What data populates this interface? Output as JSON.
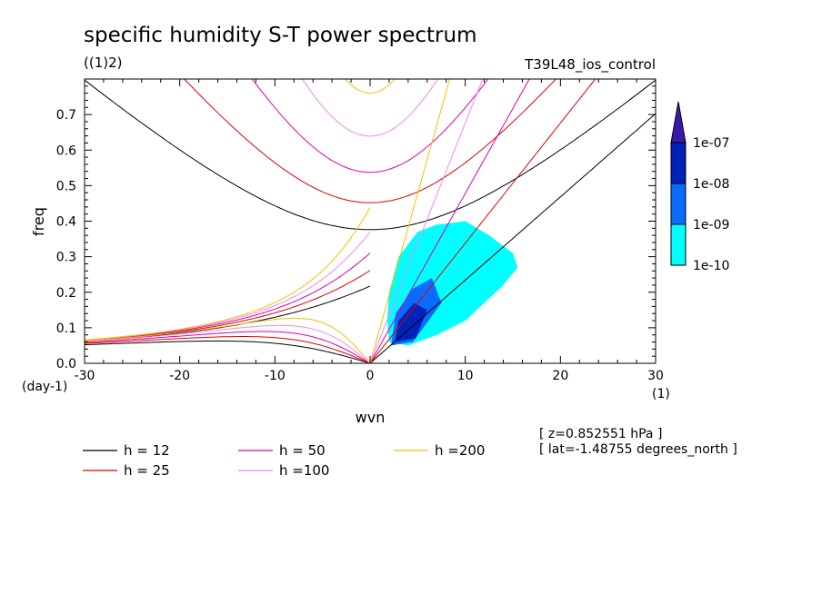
{
  "chart_data": {
    "type": "heatmap",
    "title": "specific humidity S-T power spectrum",
    "subtitle": "((1)2)",
    "run_label": "T39L48_ios_control",
    "xlabel": "wvn",
    "x_unit": "(1)",
    "ylabel": "freq",
    "y_unit": "(day-1)",
    "xlim": [
      -30,
      30
    ],
    "ylim": [
      0,
      0.8
    ],
    "xticks": [
      "-30",
      "-20",
      "-10",
      "0",
      "10",
      "20",
      "30"
    ],
    "xtick_values": [
      -30,
      -20,
      -10,
      0,
      10,
      20,
      30
    ],
    "yticks": [
      "0.0",
      "0.1",
      "0.2",
      "0.3",
      "0.4",
      "0.5",
      "0.6",
      "0.7"
    ],
    "ytick_values": [
      0,
      0.1,
      0.2,
      0.3,
      0.4,
      0.5,
      0.6,
      0.7
    ],
    "grid": false,
    "colorbar": {
      "labels": [
        "1e-10",
        "1e-09",
        "1e-08",
        "1e-07"
      ],
      "colors": [
        "#00ffff",
        "#0a6cff",
        "#0022bb",
        "#3a1aa8"
      ]
    },
    "contour_levels": [
      {
        "level": "1e-10",
        "color": "#00ffff",
        "regions": [
          {
            "x": [
              2.0,
              4.0,
              7.0,
              10.0,
              14.0,
              15.5,
              15.0,
              12.5,
              10.0,
              7.0,
              5.0,
              3.0,
              2.0,
              1.8
            ],
            "y": [
              0.06,
              0.05,
              0.08,
              0.12,
              0.22,
              0.27,
              0.31,
              0.36,
              0.4,
              0.39,
              0.37,
              0.3,
              0.2,
              0.12
            ]
          }
        ]
      },
      {
        "level": "1e-09",
        "color": "#0a6cff",
        "regions": [
          {
            "x": [
              2.2,
              4.5,
              7.5,
              6.5,
              4.5,
              2.7
            ],
            "y": [
              0.05,
              0.06,
              0.17,
              0.24,
              0.21,
              0.14
            ]
          }
        ]
      },
      {
        "level": "1e-08",
        "color": "#0022bb",
        "regions": [
          {
            "x": [
              2.6,
              4.8,
              6.0,
              4.6,
              3.0
            ],
            "y": [
              0.06,
              0.07,
              0.15,
              0.17,
              0.12
            ]
          }
        ]
      }
    ],
    "dispersion_curves": [
      {
        "name": "h = 12",
        "color": "#000000"
      },
      {
        "name": "h = 25",
        "color": "#dd0000"
      },
      {
        "name": "h = 50",
        "color": "#dd00aa"
      },
      {
        "name": "h =100",
        "color": "#ee88ee"
      },
      {
        "name": "h =200",
        "color": "#f0c000"
      }
    ],
    "equivalent_depths": [
      12,
      25,
      50,
      100,
      200
    ],
    "info": {
      "z": "[ z=0.852551 hPa ]",
      "lat": "[ lat=-1.48755 degrees_north ]"
    }
  }
}
